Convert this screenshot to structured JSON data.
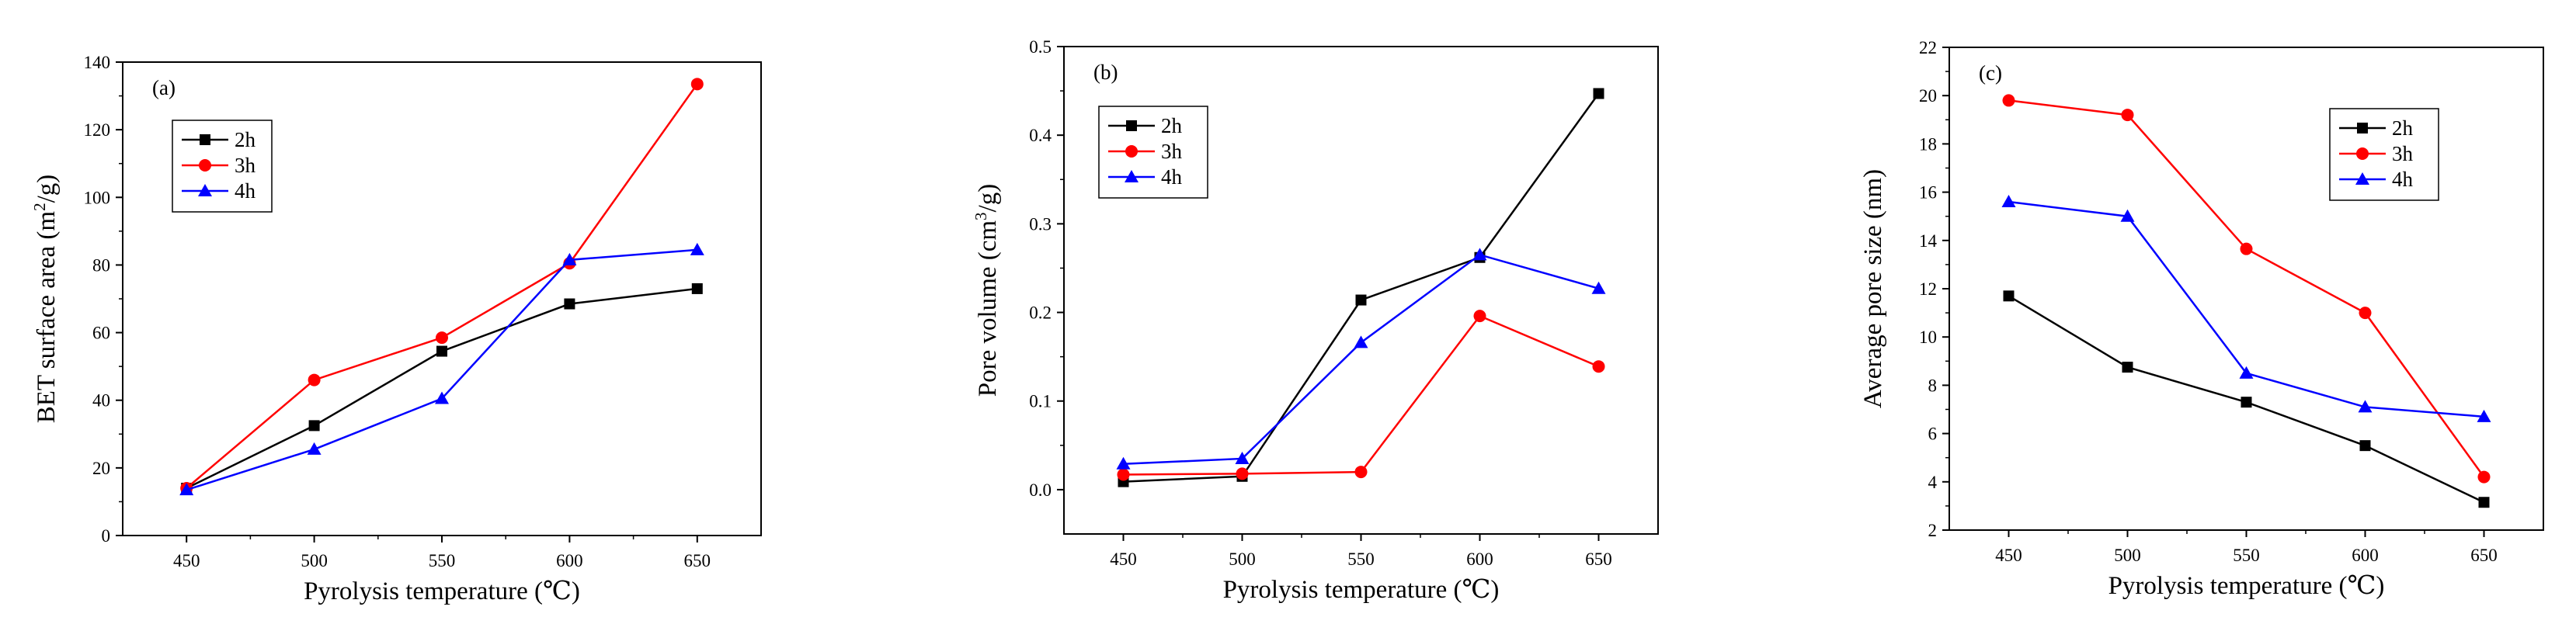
{
  "chart_data": [
    {
      "type": "line",
      "panel_label": "(a)",
      "title": "",
      "xlabel": "Pyrolysis temperature (℃)",
      "ylabel": "BET surface area (m",
      "ylabel_sup": "2",
      "ylabel_end": "/g)",
      "x": [
        450,
        500,
        550,
        600,
        650
      ],
      "x_ticks": [
        "450",
        "500",
        "550",
        "600",
        "650"
      ],
      "xlim": [
        425,
        675
      ],
      "ylim": [
        0,
        140
      ],
      "y_ticks": [
        "0",
        "20",
        "40",
        "60",
        "80",
        "100",
        "120",
        "140"
      ],
      "legend_position": "upper-left",
      "series": [
        {
          "name": "2h",
          "color": "#000000",
          "marker": "square",
          "values": [
            14,
            32.5,
            54.5,
            68.5,
            73
          ]
        },
        {
          "name": "3h",
          "color": "#ff0000",
          "marker": "circle",
          "values": [
            14,
            46,
            58.5,
            80.5,
            133.5
          ]
        },
        {
          "name": "4h",
          "color": "#0000ff",
          "marker": "triangle",
          "values": [
            13.5,
            25.5,
            40.5,
            81.5,
            84.5
          ]
        }
      ]
    },
    {
      "type": "line",
      "panel_label": "(b)",
      "title": "",
      "xlabel": "Pyrolysis temperature (℃)",
      "ylabel": "Pore volume (cm",
      "ylabel_sup": "3",
      "ylabel_end": "/g)",
      "x": [
        450,
        500,
        550,
        600,
        650
      ],
      "x_ticks": [
        "450",
        "500",
        "550",
        "600",
        "650"
      ],
      "xlim": [
        425,
        675
      ],
      "ylim": [
        -0.05,
        0.5
      ],
      "y_ticks": [
        "0.0",
        "0.1",
        "0.2",
        "0.3",
        "0.4",
        "0.5"
      ],
      "legend_position": "upper-left",
      "series": [
        {
          "name": "2h",
          "color": "#000000",
          "marker": "square",
          "values": [
            0.009,
            0.015,
            0.214,
            0.262,
            0.447
          ]
        },
        {
          "name": "3h",
          "color": "#ff0000",
          "marker": "circle",
          "values": [
            0.017,
            0.018,
            0.02,
            0.196,
            0.139
          ]
        },
        {
          "name": "4h",
          "color": "#0000ff",
          "marker": "triangle",
          "values": [
            0.029,
            0.035,
            0.166,
            0.265,
            0.227
          ]
        }
      ]
    },
    {
      "type": "line",
      "panel_label": "(c)",
      "title": "",
      "xlabel": "Pyrolysis temperature (℃)",
      "ylabel": "Average pore size (nm)",
      "ylabel_sup": "",
      "ylabel_end": "",
      "x": [
        450,
        500,
        550,
        600,
        650
      ],
      "x_ticks": [
        "450",
        "500",
        "550",
        "600",
        "650"
      ],
      "xlim": [
        425,
        675
      ],
      "ylim": [
        2,
        22
      ],
      "y_ticks": [
        "2",
        "4",
        "6",
        "8",
        "10",
        "12",
        "14",
        "16",
        "18",
        "20",
        "22"
      ],
      "legend_position": "upper-right",
      "series": [
        {
          "name": "2h",
          "color": "#000000",
          "marker": "square",
          "values": [
            11.7,
            8.75,
            7.3,
            5.5,
            3.15
          ]
        },
        {
          "name": "3h",
          "color": "#ff0000",
          "marker": "circle",
          "values": [
            19.8,
            19.2,
            13.65,
            11.0,
            4.2
          ]
        },
        {
          "name": "4h",
          "color": "#0000ff",
          "marker": "triangle",
          "values": [
            15.6,
            15.0,
            8.5,
            7.1,
            6.7
          ]
        }
      ]
    }
  ]
}
